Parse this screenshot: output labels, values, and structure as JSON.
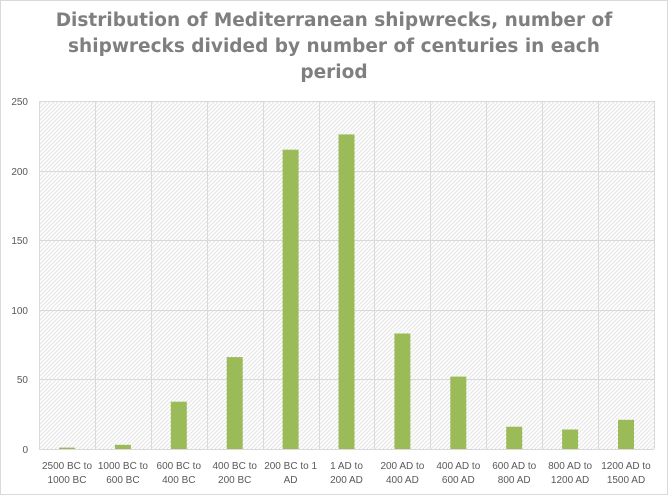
{
  "chart_data": {
    "type": "bar",
    "title_lines": [
      "Distribution of Mediterranean shipwrecks, number of",
      "shipwrecks divided by number of centuries in each",
      "period"
    ],
    "categories": [
      [
        "2500 BC to",
        "1000 BC"
      ],
      [
        "1000 BC to",
        "600 BC"
      ],
      [
        "600 BC to",
        "400 BC"
      ],
      [
        "400 BC to",
        "200 BC"
      ],
      [
        "200 BC to 1",
        "AD"
      ],
      [
        "1 AD to",
        "200 AD"
      ],
      [
        "200 AD to",
        "400 AD"
      ],
      [
        "400 AD to",
        "600 AD"
      ],
      [
        "600 AD to",
        "800 AD"
      ],
      [
        "800 AD to",
        "1200 AD"
      ],
      [
        "1200 AD to",
        "1500 AD"
      ]
    ],
    "values": [
      1,
      3,
      34,
      66,
      215,
      226,
      83,
      52,
      16,
      14,
      21
    ],
    "ylim": [
      0,
      250
    ],
    "yticks": [
      0,
      50,
      100,
      150,
      200,
      250
    ],
    "bar_color": "#9bbb59",
    "grid": true,
    "legend": "none"
  }
}
